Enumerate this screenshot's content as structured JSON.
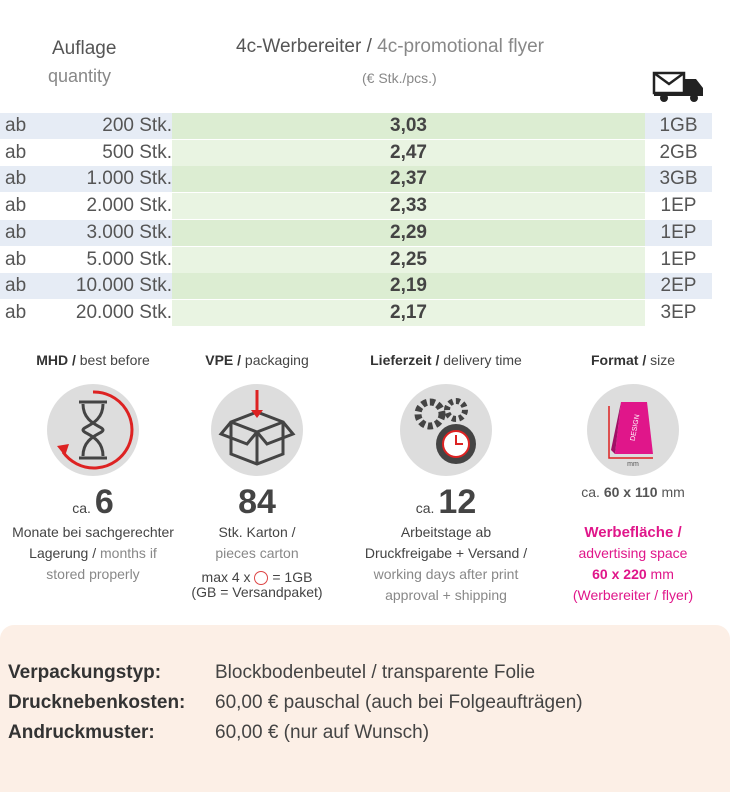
{
  "header": {
    "quantity_de": "Auflage",
    "quantity_en": "quantity",
    "title_de": "4c-Werbereiter /",
    "title_en": "4c-promotional flyer",
    "unit": "(€ Stk./pcs.)"
  },
  "table": {
    "rows": [
      [
        "ab",
        "200 Stk.",
        "3,03",
        "1GB"
      ],
      [
        "ab",
        "500 Stk.",
        "2,47",
        "2GB"
      ],
      [
        "ab",
        "1.000 Stk.",
        "2,37",
        "3GB"
      ],
      [
        "ab",
        "2.000 Stk.",
        "2,33",
        "1EP"
      ],
      [
        "ab",
        "3.000 Stk.",
        "2,29",
        "1EP"
      ],
      [
        "ab",
        "5.000 Stk.",
        "2,25",
        "1EP"
      ],
      [
        "ab",
        "10.000 Stk.",
        "2,19",
        "2EP"
      ],
      [
        "ab",
        "20.000 Stk.",
        "2,17",
        "3EP"
      ]
    ]
  },
  "features": [
    {
      "heading_de": "MHD /",
      "heading_en": "best before",
      "prefix": "ca.",
      "number": "6",
      "desc_de": "Monate bei sachgerechter Lagerung /",
      "desc_en": "months if stored properly"
    },
    {
      "heading_de": "VPE /",
      "heading_en": "packaging",
      "number": "84",
      "desc_de": "Stk. Karton /",
      "desc_en": "pieces carton",
      "note_a": "max 4 x",
      "note_b": "= 1GB",
      "note_c": "(GB = Versandpaket)"
    },
    {
      "heading_de": "Lieferzeit /",
      "heading_en": "delivery time",
      "prefix": "ca.",
      "number": "12",
      "desc_de": "Arbeitstage ab Druckfreigabe + Versand /",
      "desc_en": "working days after print approval + shipping"
    },
    {
      "heading_de": "Format /",
      "heading_en": "size",
      "icon_text": "DESIGN",
      "icon_unit": "mm",
      "size_prefix": "ca.",
      "size": "60 x 110",
      "size_unit": "mm",
      "area_de": "Werbefläche /",
      "area_en": "advertising space",
      "area_size": "60 x 220",
      "area_unit": "mm",
      "area_note": "(Werbereiter / flyer)"
    }
  ],
  "footer": {
    "rows": [
      [
        "Verpackungstyp:",
        "Blockbodenbeutel / transparente Folie"
      ],
      [
        "Drucknebenkosten:",
        "60,00 € pauschal (auch bei Folgeaufträgen)"
      ],
      [
        "Andruckmuster:",
        "60,00 € (nur auf Wunsch)"
      ]
    ]
  }
}
